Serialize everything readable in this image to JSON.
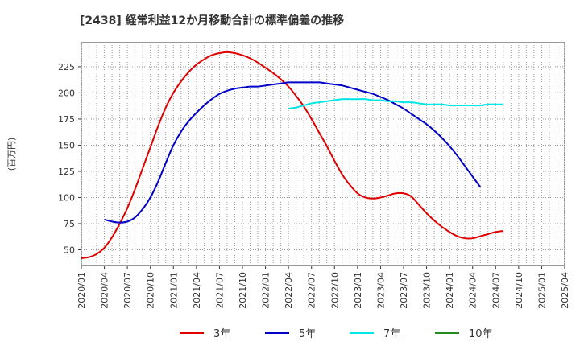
{
  "chart_data": {
    "type": "line",
    "title": "[2438]  経常利益12か月移動合計の標準偏差の推移",
    "ylabel": "(百万円)",
    "xlabel": "",
    "ylim": [
      35,
      248
    ],
    "yticks": [
      50,
      75,
      100,
      125,
      150,
      175,
      200,
      225
    ],
    "xticks": [
      "2020/01",
      "2020/04",
      "2020/07",
      "2020/10",
      "2021/01",
      "2021/04",
      "2021/07",
      "2021/10",
      "2022/01",
      "2022/04",
      "2022/07",
      "2022/10",
      "2023/01",
      "2023/04",
      "2023/07",
      "2023/10",
      "2024/01",
      "2024/04",
      "2024/07",
      "2024/10",
      "2025/01",
      "2025/04"
    ],
    "grid": true,
    "legend_position": "bottom",
    "series": [
      {
        "name": "3年",
        "color": "#e00000",
        "points": [
          [
            "2020/01",
            42
          ],
          [
            "2020/02",
            43
          ],
          [
            "2020/03",
            46
          ],
          [
            "2020/04",
            52
          ],
          [
            "2020/05",
            62
          ],
          [
            "2020/06",
            75
          ],
          [
            "2020/07",
            90
          ],
          [
            "2020/08",
            108
          ],
          [
            "2020/09",
            128
          ],
          [
            "2020/10",
            148
          ],
          [
            "2020/11",
            168
          ],
          [
            "2020/12",
            186
          ],
          [
            "2021/01",
            200
          ],
          [
            "2021/02",
            211
          ],
          [
            "2021/03",
            220
          ],
          [
            "2021/04",
            227
          ],
          [
            "2021/05",
            232
          ],
          [
            "2021/06",
            236
          ],
          [
            "2021/07",
            238
          ],
          [
            "2021/08",
            239
          ],
          [
            "2021/09",
            238
          ],
          [
            "2021/10",
            236
          ],
          [
            "2021/11",
            233
          ],
          [
            "2021/12",
            229
          ],
          [
            "2022/01",
            224
          ],
          [
            "2022/02",
            219
          ],
          [
            "2022/03",
            213
          ],
          [
            "2022/04",
            206
          ],
          [
            "2022/05",
            197
          ],
          [
            "2022/06",
            187
          ],
          [
            "2022/07",
            175
          ],
          [
            "2022/08",
            162
          ],
          [
            "2022/09",
            149
          ],
          [
            "2022/10",
            135
          ],
          [
            "2022/11",
            122
          ],
          [
            "2022/12",
            112
          ],
          [
            "2023/01",
            104
          ],
          [
            "2023/02",
            100
          ],
          [
            "2023/03",
            99
          ],
          [
            "2023/04",
            100
          ],
          [
            "2023/05",
            102
          ],
          [
            "2023/06",
            104
          ],
          [
            "2023/07",
            104
          ],
          [
            "2023/08",
            101
          ],
          [
            "2023/09",
            93
          ],
          [
            "2023/10",
            85
          ],
          [
            "2023/11",
            78
          ],
          [
            "2023/12",
            72
          ],
          [
            "2024/01",
            67
          ],
          [
            "2024/02",
            63
          ],
          [
            "2024/03",
            61
          ],
          [
            "2024/04",
            61
          ],
          [
            "2024/05",
            63
          ],
          [
            "2024/06",
            65
          ],
          [
            "2024/07",
            67
          ],
          [
            "2024/08",
            68
          ]
        ]
      },
      {
        "name": "5年",
        "color": "#0000c8",
        "points": [
          [
            "2020/04",
            79
          ],
          [
            "2020/05",
            77
          ],
          [
            "2020/06",
            76
          ],
          [
            "2020/07",
            77
          ],
          [
            "2020/08",
            81
          ],
          [
            "2020/09",
            89
          ],
          [
            "2020/10",
            100
          ],
          [
            "2020/11",
            115
          ],
          [
            "2020/12",
            133
          ],
          [
            "2021/01",
            150
          ],
          [
            "2021/02",
            163
          ],
          [
            "2021/03",
            173
          ],
          [
            "2021/04",
            181
          ],
          [
            "2021/05",
            188
          ],
          [
            "2021/06",
            194
          ],
          [
            "2021/07",
            199
          ],
          [
            "2021/08",
            202
          ],
          [
            "2021/09",
            204
          ],
          [
            "2021/10",
            205
          ],
          [
            "2021/11",
            206
          ],
          [
            "2021/12",
            206
          ],
          [
            "2022/01",
            207
          ],
          [
            "2022/02",
            208
          ],
          [
            "2022/03",
            209
          ],
          [
            "2022/04",
            210
          ],
          [
            "2022/05",
            210
          ],
          [
            "2022/06",
            210
          ],
          [
            "2022/07",
            210
          ],
          [
            "2022/08",
            210
          ],
          [
            "2022/09",
            209
          ],
          [
            "2022/10",
            208
          ],
          [
            "2022/11",
            207
          ],
          [
            "2022/12",
            205
          ],
          [
            "2023/01",
            203
          ],
          [
            "2023/02",
            201
          ],
          [
            "2023/03",
            199
          ],
          [
            "2023/04",
            196
          ],
          [
            "2023/05",
            193
          ],
          [
            "2023/06",
            189
          ],
          [
            "2023/07",
            185
          ],
          [
            "2023/08",
            180
          ],
          [
            "2023/09",
            175
          ],
          [
            "2023/10",
            170
          ],
          [
            "2023/11",
            164
          ],
          [
            "2023/12",
            157
          ],
          [
            "2024/01",
            149
          ],
          [
            "2024/02",
            140
          ],
          [
            "2024/03",
            130
          ],
          [
            "2024/04",
            120
          ],
          [
            "2024/05",
            110
          ]
        ]
      },
      {
        "name": "7年",
        "color": "#00e5e5",
        "points": [
          [
            "2022/04",
            185
          ],
          [
            "2022/05",
            186
          ],
          [
            "2022/06",
            188
          ],
          [
            "2022/07",
            190
          ],
          [
            "2022/08",
            191
          ],
          [
            "2022/09",
            192
          ],
          [
            "2022/10",
            193
          ],
          [
            "2022/11",
            194
          ],
          [
            "2022/12",
            194
          ],
          [
            "2023/01",
            194
          ],
          [
            "2023/02",
            194
          ],
          [
            "2023/03",
            193
          ],
          [
            "2023/04",
            193
          ],
          [
            "2023/05",
            192
          ],
          [
            "2023/06",
            192
          ],
          [
            "2023/07",
            191
          ],
          [
            "2023/08",
            191
          ],
          [
            "2023/09",
            190
          ],
          [
            "2023/10",
            189
          ],
          [
            "2023/11",
            189
          ],
          [
            "2023/12",
            189
          ],
          [
            "2024/01",
            188
          ],
          [
            "2024/02",
            188
          ],
          [
            "2024/03",
            188
          ],
          [
            "2024/04",
            188
          ],
          [
            "2024/05",
            188
          ],
          [
            "2024/06",
            189
          ],
          [
            "2024/07",
            189
          ],
          [
            "2024/08",
            189
          ]
        ]
      },
      {
        "name": "10年",
        "color": "#228b22",
        "points": []
      }
    ]
  }
}
